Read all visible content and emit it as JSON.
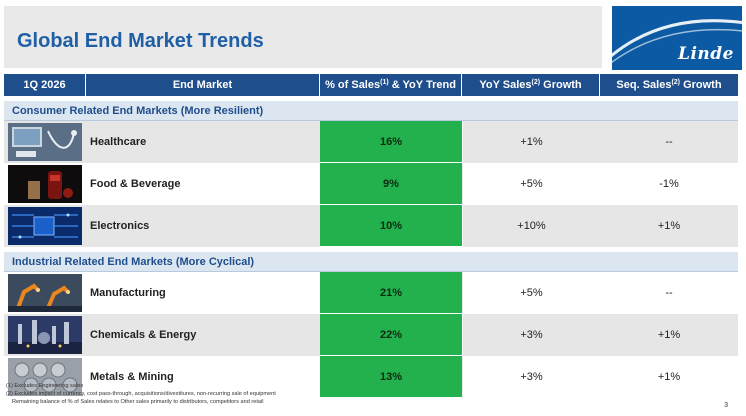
{
  "header": {
    "title": "Global End Market Trends",
    "logo_text": "Linde"
  },
  "table": {
    "columns": {
      "period": "1Q 2026",
      "end_market": "End Market",
      "pct_sales_prefix": "% of Sales",
      "pct_sales_sup": "(1)",
      "pct_sales_suffix": " & YoY Trend",
      "yoy_prefix": "YoY Sales",
      "yoy_sup": "(2)",
      "yoy_suffix": " Growth",
      "seq_prefix": "Seq. Sales",
      "seq_sup": "(2)",
      "seq_suffix": " Growth"
    },
    "sections": [
      {
        "title": "Consumer Related End Markets (More Resilient)",
        "rows": [
          {
            "name": "Healthcare",
            "pct": "16%",
            "yoy": "+1%",
            "seq": "--",
            "icon": "healthcare-photo"
          },
          {
            "name": "Food & Beverage",
            "pct": "9%",
            "yoy": "+5%",
            "seq": "-1%",
            "icon": "food-beverage-photo"
          },
          {
            "name": "Electronics",
            "pct": "10%",
            "yoy": "+10%",
            "seq": "+1%",
            "icon": "electronics-photo"
          }
        ]
      },
      {
        "title": "Industrial Related End Markets (More Cyclical)",
        "rows": [
          {
            "name": "Manufacturing",
            "pct": "21%",
            "yoy": "+5%",
            "seq": "--",
            "icon": "manufacturing-photo"
          },
          {
            "name": "Chemicals & Energy",
            "pct": "22%",
            "yoy": "+3%",
            "seq": "+1%",
            "icon": "chemicals-energy-photo"
          },
          {
            "name": "Metals & Mining",
            "pct": "13%",
            "yoy": "+3%",
            "seq": "+1%",
            "icon": "metals-mining-photo"
          }
        ]
      }
    ]
  },
  "footnotes": [
    "(1) Excludes Engineering sales",
    "(2) Excludes impact of currency, cost pass-through, acquisitions/divestitures, non-recurring sale of equipment",
    "Remaining balance of % of Sales relates to Other sales primarily to distributors, competitors and retail"
  ],
  "page_number": "3",
  "colors": {
    "header_blue": "#1f4e8c",
    "title_blue": "#1f5fa6",
    "section_bg": "#dce6f1",
    "pct_green": "#22b14c",
    "alt_row": "#e6e6e6"
  }
}
